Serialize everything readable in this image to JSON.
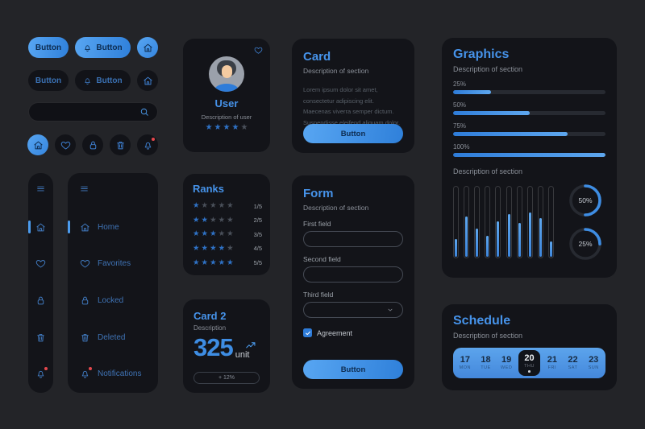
{
  "colors": {
    "accent": "#3E8DE3",
    "accent_light": "#5EA7EE",
    "navy_text": "#0D2C50",
    "card_bg": "#131419",
    "page_bg": "#232428",
    "badge_red": "#E5484D"
  },
  "buttons": {
    "primary": "Button",
    "primary_icon": "Button",
    "dark": "Button",
    "dark_icon": "Button"
  },
  "search": {
    "value": ""
  },
  "icon_row": [
    {
      "icon": "home",
      "active": true
    },
    {
      "icon": "heart",
      "active": false
    },
    {
      "icon": "lock",
      "active": false
    },
    {
      "icon": "trash",
      "active": false
    },
    {
      "icon": "bell",
      "active": false,
      "badge": true
    }
  ],
  "sidebar": {
    "items": [
      {
        "icon": "home",
        "label": "Home",
        "active": true
      },
      {
        "icon": "heart",
        "label": "Favorites",
        "active": false
      },
      {
        "icon": "lock",
        "label": "Locked",
        "active": false
      },
      {
        "icon": "trash",
        "label": "Deleted",
        "active": false
      },
      {
        "icon": "bell",
        "label": "Notifications",
        "active": false,
        "badge": true
      }
    ]
  },
  "user_card": {
    "title": "User",
    "description": "Description of user",
    "rating": 4,
    "rating_max": 5
  },
  "ranks_card": {
    "title": "Ranks",
    "stars_max": 5,
    "rows": [
      {
        "stars": 1,
        "label": "1/5"
      },
      {
        "stars": 2,
        "label": "2/5"
      },
      {
        "stars": 3,
        "label": "3/5"
      },
      {
        "stars": 4,
        "label": "4/5"
      },
      {
        "stars": 5,
        "label": "5/5"
      }
    ]
  },
  "card2": {
    "title": "Card 2",
    "description": "Description",
    "value": "325",
    "unit": "unit",
    "badge": "+ 12%"
  },
  "card": {
    "title": "Card",
    "description": "Description of section",
    "body": "Lorem ipsum dolor sit amet, consectetur adipiscing elit. Maecenas viverra semper dictum. Suspendisse eleifend aliquam dolor.",
    "button": "Button"
  },
  "form": {
    "title": "Form",
    "description": "Description of section",
    "fields": [
      {
        "label": "First field",
        "type": "text"
      },
      {
        "label": "Second field",
        "type": "text"
      },
      {
        "label": "Third field",
        "type": "select"
      }
    ],
    "agreement": {
      "label": "Agreement",
      "checked": true
    },
    "button": "Button"
  },
  "graphics": {
    "title": "Graphics",
    "description": "Description of section",
    "progress": [
      {
        "label": "25%",
        "value": 25
      },
      {
        "label": "50%",
        "value": 50
      },
      {
        "label": "75%",
        "value": 75
      },
      {
        "label": "100%",
        "value": 100
      }
    ],
    "chart_label": "Description of section",
    "chart_data": {
      "type": "bar",
      "values": [
        25,
        57,
        40,
        30,
        50,
        60,
        48,
        63,
        55,
        22
      ],
      "ylim": [
        0,
        100
      ]
    },
    "gauges": [
      {
        "label": "50%",
        "value": 50
      },
      {
        "label": "25%",
        "value": 25
      }
    ]
  },
  "schedule": {
    "title": "Schedule",
    "description": "Description of section",
    "days": [
      {
        "num": "17",
        "name": "MON",
        "selected": false
      },
      {
        "num": "18",
        "name": "TUE",
        "selected": false
      },
      {
        "num": "19",
        "name": "WED",
        "selected": false
      },
      {
        "num": "20",
        "name": "THU",
        "selected": true
      },
      {
        "num": "21",
        "name": "FRI",
        "selected": false
      },
      {
        "num": "22",
        "name": "SAT",
        "selected": false
      },
      {
        "num": "23",
        "name": "SUN",
        "selected": false
      }
    ]
  }
}
